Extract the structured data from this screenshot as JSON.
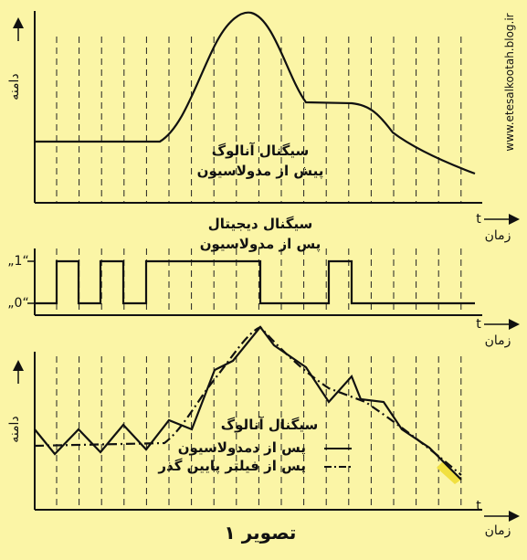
{
  "watermark": "www.etesalkootah.blog.ir",
  "panels": [
    {
      "y_label": "دامنه",
      "caption": [
        "سیگنال آنالوگ",
        "پیش از مدولاسیون"
      ],
      "x_label": "زمان",
      "x_symbol": "t"
    },
    {
      "caption": [
        "سیگنال دیجیتال",
        "پس از مدولاسیون"
      ],
      "levels": [
        "„1“",
        "„0“"
      ],
      "x_label": "زمان",
      "x_symbol": "t"
    },
    {
      "y_label": "دامنه",
      "caption": [
        "سیگنال آنالوگ"
      ],
      "legend": [
        "پس از دمدولاسیون",
        "پس از فیلتر پایین گذر"
      ],
      "x_label": "زمان",
      "x_symbol": "t"
    }
  ],
  "figure_caption": "تصویر ۱"
}
